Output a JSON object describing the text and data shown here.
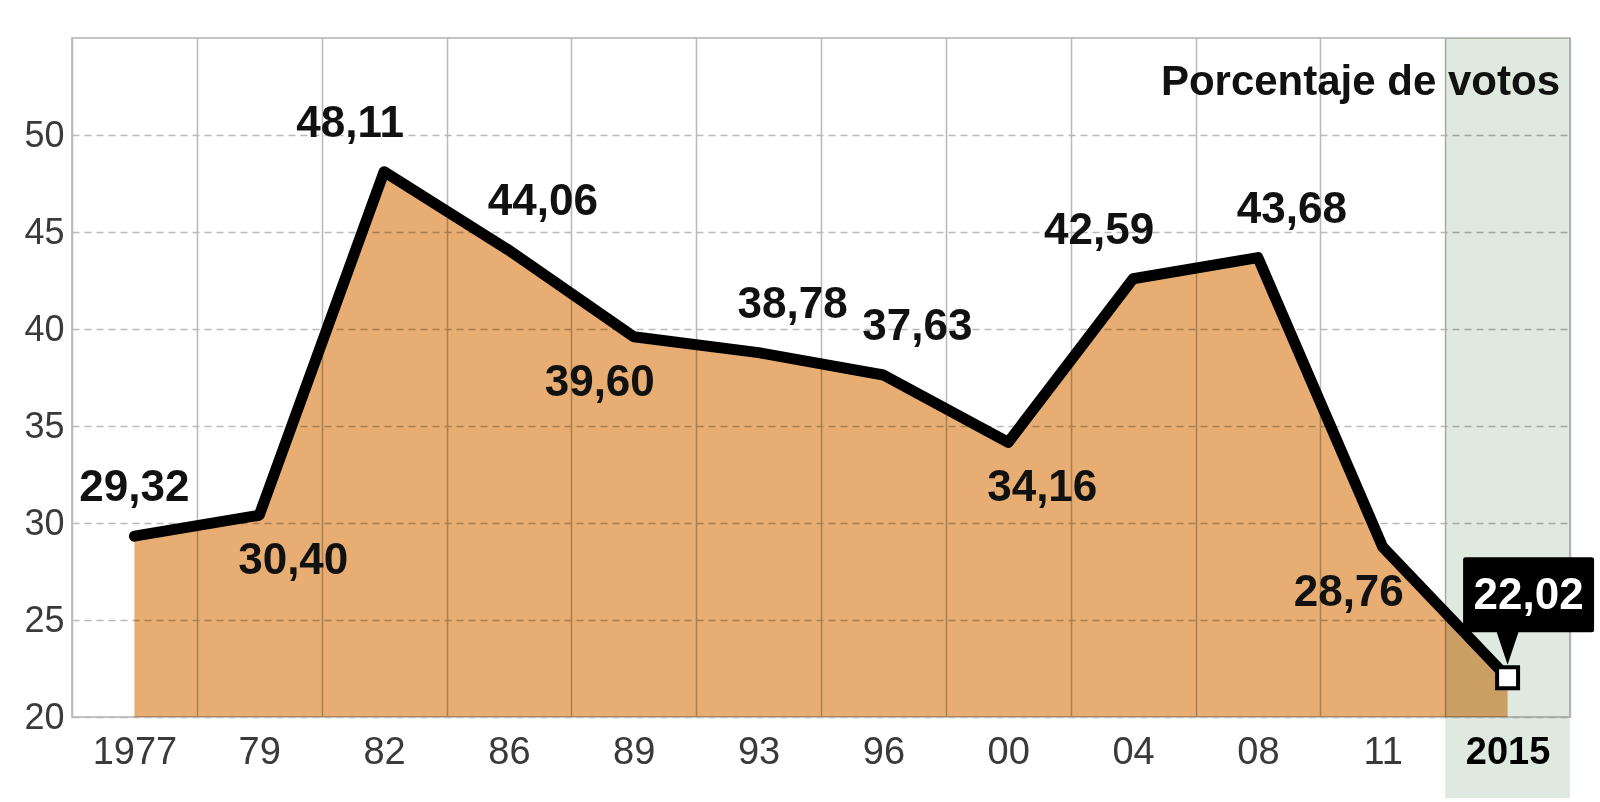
{
  "chart_data": {
    "type": "area",
    "categories": [
      "1977",
      "79",
      "82",
      "86",
      "89",
      "93",
      "96",
      "00",
      "04",
      "08",
      "11",
      "2015"
    ],
    "values": [
      29.32,
      30.4,
      48.11,
      44.06,
      39.6,
      38.78,
      37.63,
      34.16,
      42.59,
      43.68,
      28.76,
      22.02
    ],
    "color": "#e8ad72",
    "value_labels": [
      "29,32",
      "30,40",
      "48,11",
      "44,06",
      "39,60",
      "38,78",
      "37,63",
      "34,16",
      "42,59",
      "43,68",
      "28,76",
      null
    ],
    "ylim": [
      20,
      55
    ],
    "yticks": [
      20,
      25,
      30,
      35,
      40,
      45,
      50
    ],
    "grid": true,
    "bands": [
      {
        "axis": "x",
        "from": "2015",
        "to": "2015",
        "color": "#dfe9df"
      }
    ],
    "annotations": [
      "Porcentaje de votos",
      {
        "text": "22,02",
        "x": "2015",
        "y": 22.02
      }
    ]
  }
}
